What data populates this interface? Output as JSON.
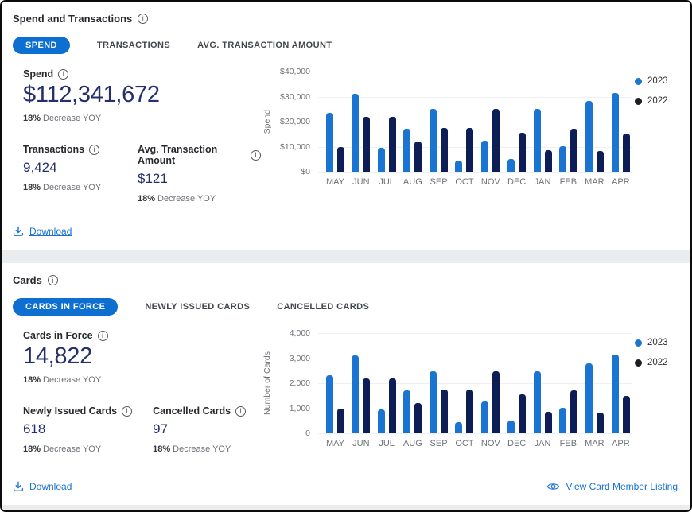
{
  "colors": {
    "accent": "#0d6fd0",
    "link": "#1a73d1",
    "value_navy": "#252f6e",
    "series_2023": "#1a75d2",
    "series_2022": "#0d1d55",
    "legend_2022_dot": "#1b1e22"
  },
  "panels": {
    "spend": {
      "title": "Spend and Transactions",
      "tabs": [
        {
          "label": "SPEND",
          "active": true
        },
        {
          "label": "TRANSACTIONS",
          "active": false
        },
        {
          "label": "AVG. TRANSACTION AMOUNT",
          "active": false
        }
      ],
      "primary_stat": {
        "label": "Spend",
        "value": "$112,341,672",
        "delta_pct": "18%",
        "delta_text": "Decrease YOY"
      },
      "sub_stats": [
        {
          "label": "Transactions",
          "value": "9,424",
          "delta_pct": "18%",
          "delta_text": "Decrease YOY"
        },
        {
          "label": "Avg. Transaction Amount",
          "value": "$121",
          "delta_pct": "18%",
          "delta_text": "Decrease YOY"
        }
      ],
      "download_label": "Download"
    },
    "cards": {
      "title": "Cards",
      "tabs": [
        {
          "label": "CARDS IN FORCE",
          "active": true
        },
        {
          "label": "NEWLY ISSUED CARDS",
          "active": false
        },
        {
          "label": "CANCELLED CARDS",
          "active": false
        }
      ],
      "primary_stat": {
        "label": "Cards in Force",
        "value": "14,822",
        "delta_pct": "18%",
        "delta_text": "Decrease YOY"
      },
      "sub_stats": [
        {
          "label": "Newly Issued Cards",
          "value": "618",
          "delta_pct": "18%",
          "delta_text": "Decrease YOY"
        },
        {
          "label": "Cancelled Cards",
          "value": "97",
          "delta_pct": "18%",
          "delta_text": "Decrease YOY"
        }
      ],
      "download_label": "Download",
      "view_listing_label": "View Card Member Listing"
    }
  },
  "chart_data": [
    {
      "type": "bar",
      "title": "Spend by month, 2023 vs 2022",
      "xlabel": "",
      "ylabel": "Spend",
      "ylim": [
        0,
        40000
      ],
      "yticks": [
        "$40,000",
        "$30,000",
        "$20,000",
        "$10,000",
        "$0"
      ],
      "grid": true,
      "legend_position": "right-top",
      "categories": [
        "MAY",
        "JUN",
        "JUL",
        "AUG",
        "SEP",
        "OCT",
        "NOV",
        "DEC",
        "JAN",
        "FEB",
        "MAR",
        "APR"
      ],
      "series": [
        {
          "name": "2023",
          "color": "#1a75d2",
          "legend_color": "#1a75d2",
          "values": [
            23500,
            31000,
            9500,
            17000,
            25000,
            4500,
            12500,
            5000,
            25000,
            10200,
            28300,
            31300
          ]
        },
        {
          "name": "2022",
          "color": "#0d1d55",
          "legend_color": "#1b1e22",
          "values": [
            10000,
            22000,
            22000,
            12000,
            17500,
            17500,
            25000,
            15500,
            8700,
            17200,
            8200,
            15200
          ]
        }
      ]
    },
    {
      "type": "bar",
      "title": "Number of cards by month, 2023 vs 2022",
      "xlabel": "",
      "ylabel": "Number of Cards",
      "ylim": [
        0,
        4000
      ],
      "yticks": [
        "4,000",
        "3,000",
        "2,000",
        "1,000",
        "0"
      ],
      "grid": true,
      "legend_position": "right-top",
      "categories": [
        "MAY",
        "JUN",
        "JUL",
        "AUG",
        "SEP",
        "OCT",
        "NOV",
        "DEC",
        "JAN",
        "FEB",
        "MAR",
        "APR"
      ],
      "series": [
        {
          "name": "2023",
          "color": "#1a75d2",
          "legend_color": "#1a75d2",
          "values": [
            2330,
            3100,
            950,
            1700,
            2480,
            450,
            1270,
            520,
            2480,
            1020,
            2800,
            3130
          ]
        },
        {
          "name": "2022",
          "color": "#0d1d55",
          "legend_color": "#1b1e22",
          "values": [
            1000,
            2200,
            2200,
            1200,
            1750,
            1750,
            2480,
            1550,
            870,
            1700,
            820,
            1500
          ]
        }
      ]
    }
  ]
}
